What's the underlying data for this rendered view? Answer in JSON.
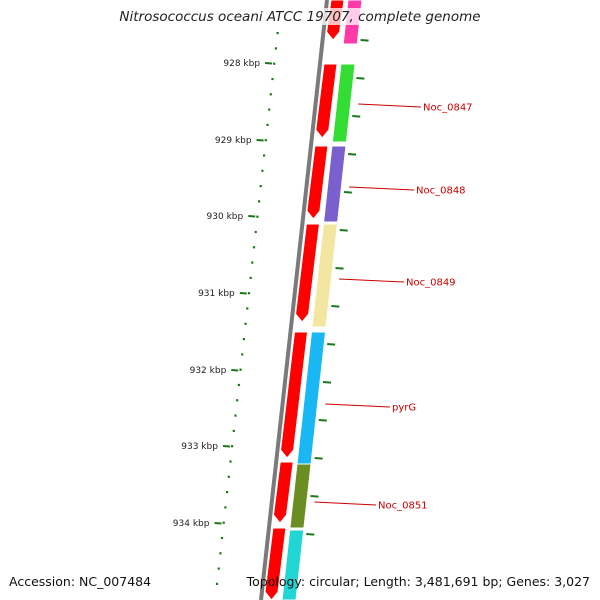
{
  "title": "Nitrosococcus oceani ATCC 19707, complete genome",
  "footer": {
    "accession": "Accession: NC_007484",
    "summary": "Topology: circular; Length: 3,481,691 bp; Genes: 3,027"
  },
  "colors": {
    "backbone": "#7a7a7a",
    "ticks": "#1a7a1a",
    "gene_label": "#cc0000",
    "cds_strand": "#ff0000"
  },
  "ticks": [
    {
      "label": "928 kbp"
    },
    {
      "label": "929 kbp"
    },
    {
      "label": "930 kbp"
    },
    {
      "label": "931 kbp"
    },
    {
      "label": "932 kbp"
    },
    {
      "label": "933 kbp"
    },
    {
      "label": "934 kbp"
    }
  ],
  "genes": [
    {
      "label": "",
      "color": "#ff3aa8"
    },
    {
      "label": "Noc_0847",
      "color": "#33dd33"
    },
    {
      "label": "Noc_0848",
      "color": "#7a5fcf"
    },
    {
      "label": "Noc_0849",
      "color": "#f2e6a0"
    },
    {
      "label": "pyrG",
      "color": "#19b8f5"
    },
    {
      "label": "Noc_0851",
      "color": "#6b8e23"
    },
    {
      "label": "",
      "color": "#22d6d6"
    }
  ]
}
